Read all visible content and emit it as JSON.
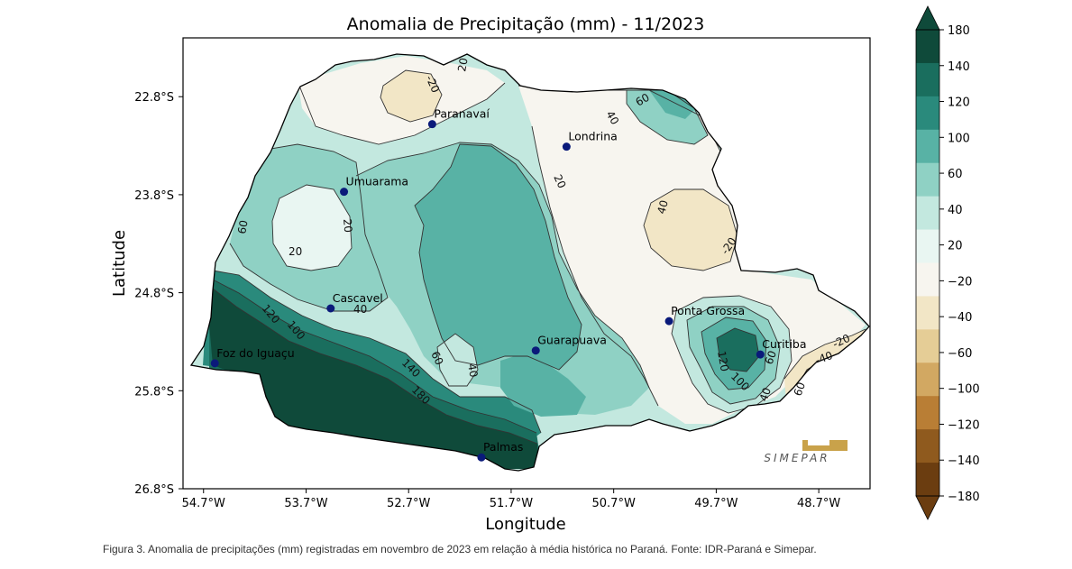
{
  "title": "Anomalia de Precipitação (mm) - 11/2023",
  "xlabel": "Longitude",
  "ylabel": "Latitude",
  "x_ticks": [
    "54.7°W",
    "53.7°W",
    "52.7°W",
    "51.7°W",
    "50.7°W",
    "49.7°W",
    "48.7°W"
  ],
  "y_ticks": [
    "22.8°S",
    "23.8°S",
    "24.8°S",
    "25.8°S",
    "26.8°S"
  ],
  "colorbar": {
    "ticks": [
      "180",
      "140",
      "120",
      "100",
      "60",
      "40",
      "20",
      "−20",
      "−40",
      "−60",
      "−100",
      "−120",
      "−140",
      "−180"
    ],
    "colors": [
      "#0f4a3a",
      "#1a6e5e",
      "#2a8a7c",
      "#58b2a5",
      "#8fd1c4",
      "#c3e8df",
      "#e9f6f2",
      "#f7f5ef",
      "#f2e6c6",
      "#e5cd96",
      "#d2a862",
      "#b97e35",
      "#8f5a1e",
      "#6b3d10"
    ]
  },
  "cities": [
    {
      "name": "Paranavaí",
      "lon": -52.47,
      "lat": -23.08
    },
    {
      "name": "Londrina",
      "lon": -51.16,
      "lat": -23.31
    },
    {
      "name": "Umuarama",
      "lon": -53.33,
      "lat": -23.77
    },
    {
      "name": "Cascavel",
      "lon": -53.46,
      "lat": -24.96
    },
    {
      "name": "Guarapuava",
      "lon": -51.46,
      "lat": -25.39
    },
    {
      "name": "Ponta Grossa",
      "lon": -50.16,
      "lat": -25.09
    },
    {
      "name": "Curitiba",
      "lon": -49.27,
      "lat": -25.43
    },
    {
      "name": "Foz do Iguaçu",
      "lon": -54.59,
      "lat": -25.52
    },
    {
      "name": "Palmas",
      "lon": -51.99,
      "lat": -26.48
    }
  ],
  "contour_labels": [
    "20",
    "-20",
    "40",
    "60",
    "20",
    "40",
    "20",
    "-20",
    "60",
    "20",
    "40",
    "120",
    "100",
    "40",
    "60",
    "140",
    "180",
    "120",
    "100",
    "60",
    "40",
    "-20",
    "-40",
    "60"
  ],
  "logo": {
    "text": "SIMEPAR"
  },
  "caption": "Figura 3. Anomalia de precipitações (mm) registradas em novembro de 2023 em relação à média histórica no Paraná. Fonte: IDR-Paraná e Simepar."
}
